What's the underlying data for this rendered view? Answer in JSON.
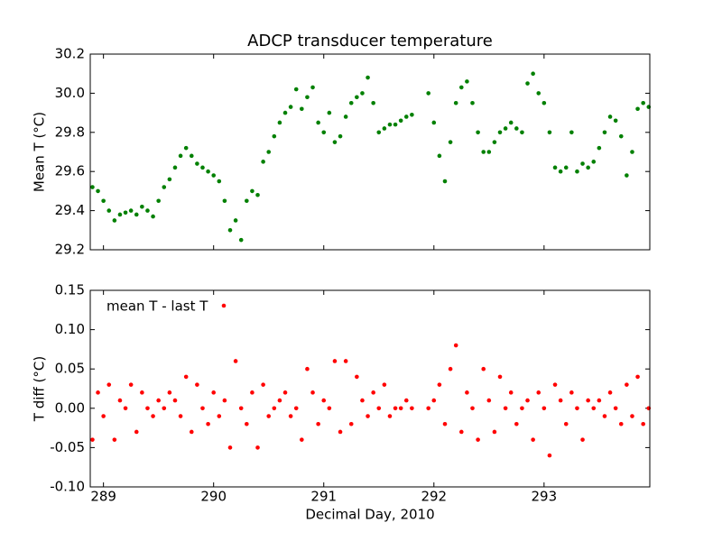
{
  "chart_data": [
    {
      "type": "scatter",
      "title": "ADCP transducer temperature",
      "y_label": "Mean T (°C)",
      "color": "#008000",
      "x": [
        288.9,
        288.95,
        289.0,
        289.05,
        289.1,
        289.15,
        289.2,
        289.25,
        289.3,
        289.35,
        289.4,
        289.45,
        289.5,
        289.55,
        289.6,
        289.65,
        289.7,
        289.75,
        289.8,
        289.85,
        289.9,
        289.95,
        290.0,
        290.05,
        290.1,
        290.15,
        290.2,
        290.25,
        290.3,
        290.35,
        290.4,
        290.45,
        290.5,
        290.55,
        290.6,
        290.65,
        290.7,
        290.75,
        290.8,
        290.85,
        290.9,
        290.95,
        291.0,
        291.05,
        291.1,
        291.15,
        291.2,
        291.25,
        291.3,
        291.35,
        291.4,
        291.45,
        291.5,
        291.55,
        291.6,
        291.65,
        291.7,
        291.75,
        291.8,
        291.95,
        292.0,
        292.05,
        292.1,
        292.15,
        292.2,
        292.25,
        292.3,
        292.35,
        292.4,
        292.45,
        292.5,
        292.55,
        292.6,
        292.65,
        292.7,
        292.75,
        292.8,
        292.85,
        292.9,
        292.95,
        293.0,
        293.05,
        293.1,
        293.15,
        293.2,
        293.25,
        293.3,
        293.35,
        293.4,
        293.45,
        293.5,
        293.55,
        293.6,
        293.65,
        293.7,
        293.75,
        293.8,
        293.85,
        293.9,
        293.95
      ],
      "values": [
        29.52,
        29.5,
        29.45,
        29.4,
        29.35,
        29.38,
        29.39,
        29.4,
        29.38,
        29.42,
        29.4,
        29.37,
        29.45,
        29.52,
        29.56,
        29.62,
        29.68,
        29.72,
        29.68,
        29.64,
        29.62,
        29.6,
        29.58,
        29.55,
        29.45,
        29.3,
        29.35,
        29.25,
        29.45,
        29.5,
        29.48,
        29.65,
        29.7,
        29.78,
        29.85,
        29.9,
        29.93,
        30.02,
        29.92,
        29.98,
        30.03,
        29.85,
        29.8,
        29.9,
        29.75,
        29.78,
        29.88,
        29.95,
        29.98,
        30.0,
        30.08,
        29.95,
        29.8,
        29.82,
        29.84,
        29.84,
        29.86,
        29.88,
        29.89,
        30.0,
        29.85,
        29.68,
        29.55,
        29.75,
        29.95,
        30.03,
        30.06,
        29.95,
        29.8,
        29.7,
        29.7,
        29.75,
        29.8,
        29.82,
        29.85,
        29.82,
        29.8,
        30.05,
        30.1,
        30.0,
        29.95,
        29.8,
        29.62,
        29.6,
        29.62,
        29.8,
        29.6,
        29.64,
        29.62,
        29.65,
        29.72,
        29.8,
        29.88,
        29.86,
        29.78,
        29.58,
        29.7,
        29.92,
        29.95,
        29.93
      ],
      "xlim": [
        288.88,
        293.96
      ],
      "ylim": [
        29.2,
        30.2
      ],
      "yticks": [
        29.2,
        29.4,
        29.6,
        29.8,
        {
          "value": 30.0,
          "label": "30.0"
        },
        30.2
      ]
    },
    {
      "type": "scatter",
      "x_label": "Decimal Day, 2010",
      "y_label": "T diff (°C)",
      "legend": "upper left",
      "x": [
        288.9,
        288.95,
        289.0,
        289.05,
        289.1,
        289.15,
        289.2,
        289.25,
        289.3,
        289.35,
        289.4,
        289.45,
        289.5,
        289.55,
        289.6,
        289.65,
        289.7,
        289.75,
        289.8,
        289.85,
        289.9,
        289.95,
        290.0,
        290.05,
        290.1,
        290.15,
        290.2,
        290.25,
        290.3,
        290.35,
        290.4,
        290.45,
        290.5,
        290.55,
        290.6,
        290.65,
        290.7,
        290.75,
        290.8,
        290.85,
        290.9,
        290.95,
        291.0,
        291.05,
        291.1,
        291.15,
        291.2,
        291.25,
        291.3,
        291.35,
        291.4,
        291.45,
        291.5,
        291.55,
        291.6,
        291.65,
        291.7,
        291.75,
        291.8,
        291.95,
        292.0,
        292.05,
        292.1,
        292.15,
        292.2,
        292.25,
        292.3,
        292.35,
        292.4,
        292.45,
        292.5,
        292.55,
        292.6,
        292.65,
        292.7,
        292.75,
        292.8,
        292.85,
        292.9,
        292.95,
        293.0,
        293.05,
        293.1,
        293.15,
        293.2,
        293.25,
        293.3,
        293.35,
        293.4,
        293.45,
        293.5,
        293.55,
        293.6,
        293.65,
        293.7,
        293.75,
        293.8,
        293.85,
        293.9,
        293.95
      ],
      "series": [
        {
          "name": "mean T - last T",
          "color": "#ff0000",
          "values": [
            -0.04,
            0.02,
            -0.01,
            0.03,
            -0.04,
            0.01,
            0.0,
            0.03,
            -0.03,
            0.02,
            0.0,
            -0.01,
            0.01,
            0.0,
            0.02,
            0.01,
            -0.01,
            0.04,
            -0.03,
            0.03,
            0.0,
            -0.02,
            0.02,
            -0.01,
            0.01,
            -0.05,
            0.06,
            0.0,
            -0.02,
            0.02,
            -0.05,
            0.03,
            -0.01,
            0.0,
            0.01,
            0.02,
            -0.01,
            0.0,
            -0.04,
            0.05,
            0.02,
            -0.02,
            0.01,
            0.0,
            0.06,
            -0.03,
            0.06,
            -0.02,
            0.04,
            0.01,
            -0.01,
            0.02,
            0.0,
            0.03,
            -0.01,
            0.0,
            0.0,
            0.01,
            0.0,
            0.0,
            0.01,
            0.03,
            -0.02,
            0.05,
            0.08,
            -0.03,
            0.02,
            0.0,
            -0.04,
            0.05,
            0.01,
            -0.03,
            0.04,
            0.0,
            0.02,
            -0.02,
            0.0,
            0.01,
            -0.04,
            0.02,
            0.0,
            -0.06,
            0.03,
            0.01,
            -0.02,
            0.02,
            0.0,
            -0.04,
            0.01,
            0.0,
            0.01,
            -0.01,
            0.02,
            0.0,
            -0.02,
            0.03,
            -0.01,
            0.04,
            -0.02,
            0.0
          ]
        }
      ],
      "xlim": [
        288.88,
        293.96
      ],
      "ylim": [
        -0.1,
        0.15
      ],
      "xticks": [
        289,
        290,
        291,
        292,
        293
      ],
      "yticks": [
        {
          "value": -0.1,
          "label": "-0.10"
        },
        -0.05,
        {
          "value": 0,
          "label": "0.00"
        },
        0.05,
        {
          "value": 0.1,
          "label": "0.10"
        },
        0.15
      ]
    }
  ]
}
